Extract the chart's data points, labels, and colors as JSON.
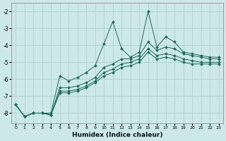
{
  "xlabel": "Humidex (Indice chaleur)",
  "background_color": "#cce8e8",
  "grid_color": "#aacccc",
  "line_color": "#1a6b5a",
  "xlim": [
    -0.5,
    23.5
  ],
  "ylim": [
    -8.6,
    -1.5
  ],
  "yticks": [
    -8,
    -7,
    -6,
    -5,
    -4,
    -3,
    -2
  ],
  "xticks": [
    0,
    1,
    2,
    3,
    4,
    5,
    6,
    7,
    8,
    9,
    10,
    11,
    12,
    13,
    14,
    15,
    16,
    17,
    18,
    19,
    20,
    21,
    22,
    23
  ],
  "lines": [
    [
      -7.5,
      -8.2,
      -8.0,
      -8.0,
      -8.0,
      -5.8,
      -6.1,
      -5.9,
      -5.6,
      -5.2,
      -3.9,
      -2.6,
      -4.2,
      -4.7,
      -4.4,
      -2.0,
      -4.1,
      -3.5,
      -3.8,
      -4.4,
      -4.5,
      -4.6,
      -4.7,
      -4.7
    ],
    [
      -7.5,
      -8.2,
      -8.0,
      -8.0,
      -8.1,
      -6.5,
      -6.5,
      -6.4,
      -6.2,
      -5.9,
      -5.3,
      -5.1,
      -4.8,
      -4.8,
      -4.6,
      -3.8,
      -4.3,
      -4.1,
      -4.2,
      -4.5,
      -4.6,
      -4.7,
      -4.8,
      -4.8
    ],
    [
      -7.5,
      -8.2,
      -8.0,
      -8.0,
      -8.1,
      -6.7,
      -6.7,
      -6.6,
      -6.4,
      -6.1,
      -5.6,
      -5.4,
      -5.1,
      -5.0,
      -4.8,
      -4.2,
      -4.6,
      -4.5,
      -4.6,
      -4.8,
      -4.9,
      -5.0,
      -5.0,
      -5.0
    ],
    [
      -7.5,
      -8.2,
      -8.0,
      -8.0,
      -8.1,
      -6.8,
      -6.8,
      -6.7,
      -6.5,
      -6.2,
      -5.8,
      -5.6,
      -5.3,
      -5.2,
      -5.0,
      -4.4,
      -4.8,
      -4.7,
      -4.8,
      -5.0,
      -5.1,
      -5.1,
      -5.1,
      -5.1
    ]
  ]
}
